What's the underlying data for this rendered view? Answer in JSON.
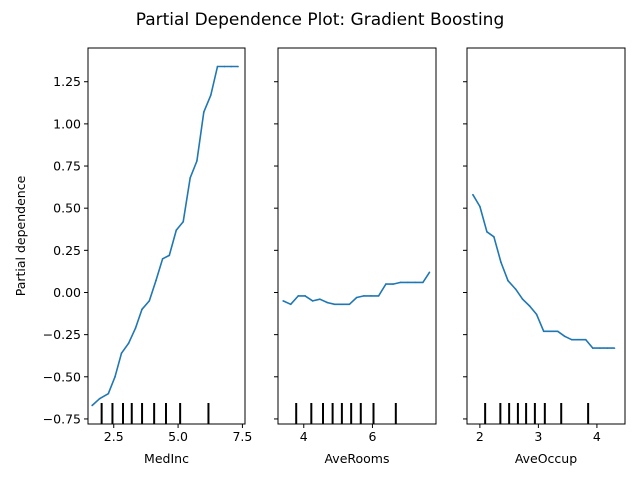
{
  "figure": {
    "title": "Partial Dependence Plot: Gradient Boosting"
  },
  "chart_data": [
    {
      "type": "line",
      "xlabel": "MedInc",
      "ylabel": "Partial dependence",
      "xlim": [
        1.5,
        7.6
      ],
      "ylim": [
        -0.78,
        1.45
      ],
      "xticks": [
        2.5,
        5.0,
        7.5
      ],
      "xtick_labels": [
        "2.5",
        "5.0",
        "7.5"
      ],
      "yticks": [
        -0.75,
        -0.5,
        -0.25,
        0.0,
        0.25,
        0.5,
        0.75,
        1.0,
        1.25
      ],
      "ytick_labels": [
        "−0.75",
        "−0.50",
        "−0.25",
        "0.00",
        "0.25",
        "0.50",
        "0.75",
        "1.00",
        "1.25"
      ],
      "show_ytick_labels": true,
      "line_color": "#1f77b4",
      "x": [
        1.66,
        1.95,
        2.29,
        2.55,
        2.8,
        3.08,
        3.35,
        3.6,
        3.88,
        4.14,
        4.4,
        4.66,
        4.93,
        5.2,
        5.47,
        5.73,
        6.0,
        6.27,
        6.53,
        6.8,
        7.06,
        7.33
      ],
      "y": [
        -0.67,
        -0.63,
        -0.6,
        -0.5,
        -0.36,
        -0.3,
        -0.21,
        -0.1,
        -0.05,
        0.07,
        0.2,
        0.22,
        0.37,
        0.42,
        0.68,
        0.78,
        1.07,
        1.17,
        1.34,
        1.34,
        1.34,
        1.34
      ],
      "deciles": [
        2.03,
        2.45,
        2.86,
        3.2,
        3.6,
        4.07,
        4.53,
        5.08,
        6.18
      ]
    },
    {
      "type": "line",
      "xlabel": "AveRooms",
      "ylabel": "",
      "xlim": [
        3.25,
        7.85
      ],
      "ylim": [
        -0.78,
        1.45
      ],
      "xticks": [
        4,
        6
      ],
      "xtick_labels": [
        "4",
        "6"
      ],
      "show_ytick_labels": false,
      "line_color": "#1f77b4",
      "x": [
        3.4,
        3.62,
        3.84,
        4.04,
        4.26,
        4.47,
        4.69,
        4.9,
        5.11,
        5.33,
        5.54,
        5.75,
        5.96,
        6.18,
        6.39,
        6.6,
        6.82,
        7.03,
        7.25,
        7.47,
        7.66
      ],
      "y": [
        -0.05,
        -0.07,
        -0.02,
        -0.02,
        -0.05,
        -0.04,
        -0.06,
        -0.07,
        -0.07,
        -0.07,
        -0.03,
        -0.02,
        -0.02,
        -0.02,
        0.05,
        0.05,
        0.06,
        0.06,
        0.06,
        0.06,
        0.12
      ],
      "deciles": [
        3.78,
        4.22,
        4.56,
        4.84,
        5.11,
        5.38,
        5.66,
        6.03,
        6.68
      ]
    },
    {
      "type": "line",
      "xlabel": "AveOccup",
      "ylabel": "",
      "xlim": [
        1.78,
        4.48
      ],
      "ylim": [
        -0.78,
        1.45
      ],
      "xticks": [
        2,
        3,
        4
      ],
      "xtick_labels": [
        "2",
        "3",
        "4"
      ],
      "show_ytick_labels": false,
      "line_color": "#1f77b4",
      "x": [
        1.88,
        2.0,
        2.12,
        2.24,
        2.36,
        2.48,
        2.61,
        2.73,
        2.85,
        2.97,
        3.09,
        3.21,
        3.33,
        3.45,
        3.57,
        3.69,
        3.81,
        3.93,
        4.05,
        4.18,
        4.3
      ],
      "y": [
        0.58,
        0.51,
        0.36,
        0.33,
        0.18,
        0.07,
        0.02,
        -0.04,
        -0.08,
        -0.13,
        -0.23,
        -0.23,
        -0.23,
        -0.26,
        -0.28,
        -0.28,
        -0.28,
        -0.33,
        -0.33,
        -0.33,
        -0.33
      ],
      "deciles": [
        2.09,
        2.35,
        2.5,
        2.65,
        2.79,
        2.94,
        3.11,
        3.39,
        3.85
      ]
    }
  ]
}
